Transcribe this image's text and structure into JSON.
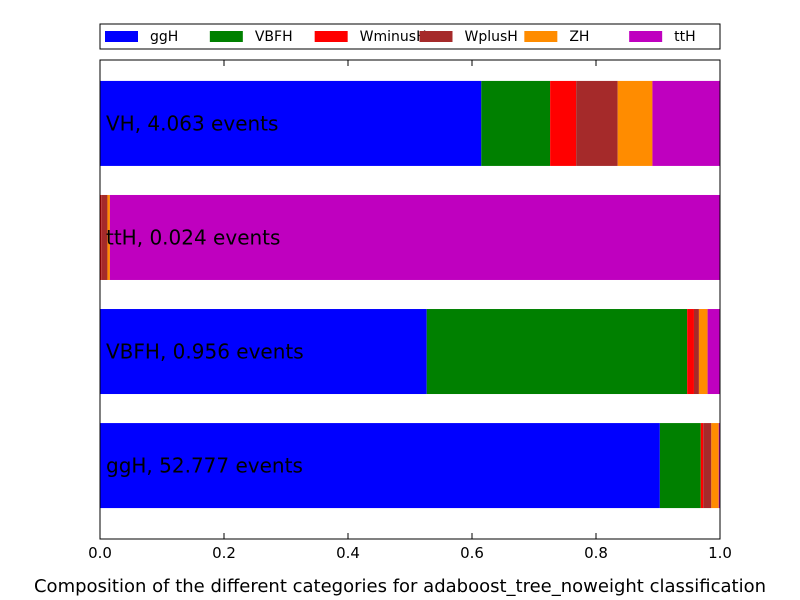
{
  "chart_data": {
    "type": "bar",
    "orientation": "horizontal",
    "stacked": true,
    "xlabel": "Composition of the different categories for adaboost_tree_noweight classification",
    "xlim": [
      0.0,
      1.0
    ],
    "xticks": [
      "0.0",
      "0.2",
      "0.4",
      "0.6",
      "0.8",
      "1.0"
    ],
    "legend_position": "top",
    "grid": false,
    "categories": [
      "ggH, 52.777 events",
      "VBFH, 0.956 events",
      "ttH, 0.024 events",
      "VH, 4.063 events"
    ],
    "series": [
      {
        "name": "ggH",
        "color": "#0000ff",
        "values": [
          0.903,
          0.527,
          0.0,
          0.615
        ]
      },
      {
        "name": "VBFH",
        "color": "#008000",
        "values": [
          0.066,
          0.42,
          0.0,
          0.111
        ]
      },
      {
        "name": "WminusH",
        "color": "#ff0000",
        "values": [
          0.004,
          0.011,
          0.002,
          0.042
        ]
      },
      {
        "name": "WplusH",
        "color": "#a52a2a",
        "values": [
          0.013,
          0.008,
          0.01,
          0.067
        ]
      },
      {
        "name": "ZH",
        "color": "#ff8c00",
        "values": [
          0.012,
          0.014,
          0.004,
          0.056
        ]
      },
      {
        "name": "ttH",
        "color": "#bf00bf",
        "values": [
          0.002,
          0.02,
          0.984,
          0.109
        ]
      }
    ]
  }
}
